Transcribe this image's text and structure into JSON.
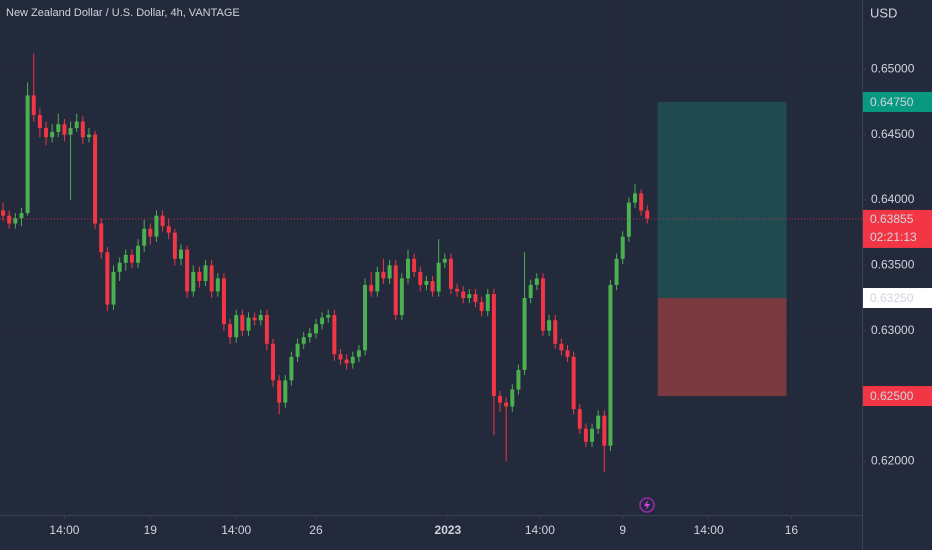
{
  "chart_data": {
    "type": "candlestick",
    "title": "New Zealand Dollar / U.S. Dollar, 4h, VANTAGE",
    "currency": "USD",
    "up_color": "#4caf50",
    "down_color": "#f23645",
    "grid": true,
    "xlim": [
      -0.5,
      140
    ],
    "ylim": [
      0.6159,
      0.6553
    ],
    "yticks": [
      {
        "value": 0.65,
        "label": "0.65000"
      },
      {
        "value": 0.645,
        "label": "0.64500"
      },
      {
        "value": 0.64,
        "label": "0.64000"
      },
      {
        "value": 0.635,
        "label": "0.63500"
      },
      {
        "value": 0.63,
        "label": "0.63000"
      },
      {
        "value": 0.625,
        "label": "0.62500"
      },
      {
        "value": 0.62,
        "label": "0.62000"
      }
    ],
    "xticks": [
      {
        "value": 10,
        "label": "14:00"
      },
      {
        "value": 24,
        "label": "19"
      },
      {
        "value": 38,
        "label": "14:00"
      },
      {
        "value": 51,
        "label": "26"
      },
      {
        "value": 72.5,
        "label": "2023"
      },
      {
        "value": 87.5,
        "label": "14:00"
      },
      {
        "value": 101,
        "label": "9"
      },
      {
        "value": 115,
        "label": "14:00"
      },
      {
        "value": 128.5,
        "label": "16"
      }
    ],
    "candles": [
      [
        0.6392,
        0.6398,
        0.6384,
        0.6388
      ],
      [
        0.6388,
        0.6392,
        0.6378,
        0.6382
      ],
      [
        0.6382,
        0.639,
        0.6378,
        0.6386
      ],
      [
        0.6386,
        0.6394,
        0.638,
        0.639
      ],
      [
        0.639,
        0.649,
        0.6388,
        0.648
      ],
      [
        0.648,
        0.6512,
        0.646,
        0.6465
      ],
      [
        0.6465,
        0.647,
        0.6448,
        0.6455
      ],
      [
        0.6455,
        0.646,
        0.6442,
        0.6448
      ],
      [
        0.6448,
        0.6458,
        0.6444,
        0.6452
      ],
      [
        0.6452,
        0.6466,
        0.6448,
        0.6458
      ],
      [
        0.6458,
        0.6462,
        0.6445,
        0.645
      ],
      [
        0.645,
        0.646,
        0.64,
        0.6455
      ],
      [
        0.6455,
        0.6466,
        0.6452,
        0.646
      ],
      [
        0.646,
        0.6464,
        0.6443,
        0.6448
      ],
      [
        0.6448,
        0.6455,
        0.6444,
        0.645
      ],
      [
        0.645,
        0.6453,
        0.6378,
        0.6382
      ],
      [
        0.6382,
        0.6386,
        0.6355,
        0.636
      ],
      [
        0.636,
        0.6364,
        0.6315,
        0.632
      ],
      [
        0.632,
        0.635,
        0.6316,
        0.6345
      ],
      [
        0.6345,
        0.6356,
        0.6338,
        0.6352
      ],
      [
        0.6352,
        0.6362,
        0.6346,
        0.6358
      ],
      [
        0.6358,
        0.6362,
        0.6348,
        0.6352
      ],
      [
        0.6352,
        0.637,
        0.6348,
        0.6365
      ],
      [
        0.6365,
        0.6385,
        0.636,
        0.6378
      ],
      [
        0.6378,
        0.6382,
        0.6366,
        0.6372
      ],
      [
        0.6372,
        0.6392,
        0.6368,
        0.6388
      ],
      [
        0.6388,
        0.6392,
        0.6376,
        0.638
      ],
      [
        0.638,
        0.6386,
        0.637,
        0.6375
      ],
      [
        0.6375,
        0.6378,
        0.635,
        0.6355
      ],
      [
        0.6355,
        0.6366,
        0.635,
        0.6362
      ],
      [
        0.6362,
        0.6365,
        0.6325,
        0.633
      ],
      [
        0.633,
        0.635,
        0.6326,
        0.6345
      ],
      [
        0.6345,
        0.6349,
        0.6333,
        0.6338
      ],
      [
        0.6338,
        0.6354,
        0.6334,
        0.635
      ],
      [
        0.635,
        0.6354,
        0.6325,
        0.633
      ],
      [
        0.633,
        0.6344,
        0.6326,
        0.634
      ],
      [
        0.634,
        0.6344,
        0.63,
        0.6305
      ],
      [
        0.6305,
        0.6309,
        0.629,
        0.6295
      ],
      [
        0.6295,
        0.6316,
        0.6291,
        0.6312
      ],
      [
        0.6312,
        0.6316,
        0.6296,
        0.63
      ],
      [
        0.63,
        0.6314,
        0.6296,
        0.631
      ],
      [
        0.631,
        0.6314,
        0.6304,
        0.6308
      ],
      [
        0.6308,
        0.6316,
        0.6304,
        0.6312
      ],
      [
        0.6312,
        0.6316,
        0.6285,
        0.629
      ],
      [
        0.629,
        0.6294,
        0.6257,
        0.6262
      ],
      [
        0.6262,
        0.6266,
        0.6236,
        0.6245
      ],
      [
        0.6245,
        0.6266,
        0.6241,
        0.6262
      ],
      [
        0.6262,
        0.6284,
        0.6258,
        0.628
      ],
      [
        0.628,
        0.6294,
        0.6276,
        0.629
      ],
      [
        0.629,
        0.6299,
        0.6286,
        0.6295
      ],
      [
        0.6295,
        0.6302,
        0.6291,
        0.6298
      ],
      [
        0.6298,
        0.6309,
        0.6294,
        0.6305
      ],
      [
        0.6305,
        0.6314,
        0.6301,
        0.631
      ],
      [
        0.631,
        0.6316,
        0.6306,
        0.6312
      ],
      [
        0.6312,
        0.6316,
        0.6277,
        0.6282
      ],
      [
        0.6282,
        0.6286,
        0.6274,
        0.6278
      ],
      [
        0.6278,
        0.6282,
        0.627,
        0.6275
      ],
      [
        0.6275,
        0.6284,
        0.6271,
        0.628
      ],
      [
        0.628,
        0.6289,
        0.6276,
        0.6285
      ],
      [
        0.6285,
        0.634,
        0.6281,
        0.6335
      ],
      [
        0.6335,
        0.6345,
        0.6326,
        0.633
      ],
      [
        0.633,
        0.6349,
        0.6326,
        0.6345
      ],
      [
        0.6345,
        0.6355,
        0.6336,
        0.634
      ],
      [
        0.634,
        0.6354,
        0.6336,
        0.635
      ],
      [
        0.635,
        0.6354,
        0.6308,
        0.6312
      ],
      [
        0.6312,
        0.6344,
        0.6308,
        0.634
      ],
      [
        0.634,
        0.6362,
        0.6336,
        0.6355
      ],
      [
        0.6355,
        0.6359,
        0.6341,
        0.6345
      ],
      [
        0.6345,
        0.6349,
        0.633,
        0.6335
      ],
      [
        0.6335,
        0.6342,
        0.6331,
        0.6338
      ],
      [
        0.6338,
        0.6342,
        0.6326,
        0.633
      ],
      [
        0.633,
        0.637,
        0.6326,
        0.6352
      ],
      [
        0.6352,
        0.6359,
        0.6348,
        0.6355
      ],
      [
        0.6355,
        0.6359,
        0.6328,
        0.6332
      ],
      [
        0.6332,
        0.6336,
        0.6326,
        0.633
      ],
      [
        0.633,
        0.6334,
        0.6321,
        0.6325
      ],
      [
        0.6325,
        0.6332,
        0.6321,
        0.6328
      ],
      [
        0.6328,
        0.6332,
        0.6318,
        0.6322
      ],
      [
        0.6322,
        0.6326,
        0.6311,
        0.6315
      ],
      [
        0.6315,
        0.6332,
        0.6311,
        0.6328
      ],
      [
        0.6328,
        0.6332,
        0.622,
        0.625
      ],
      [
        0.625,
        0.6254,
        0.6238,
        0.6245
      ],
      [
        0.6245,
        0.6249,
        0.62,
        0.6242
      ],
      [
        0.6242,
        0.6259,
        0.6238,
        0.6255
      ],
      [
        0.6255,
        0.6274,
        0.6251,
        0.627
      ],
      [
        0.627,
        0.636,
        0.6266,
        0.6325
      ],
      [
        0.6325,
        0.6339,
        0.6321,
        0.6335
      ],
      [
        0.6335,
        0.6344,
        0.6331,
        0.634
      ],
      [
        0.634,
        0.6344,
        0.6296,
        0.63
      ],
      [
        0.63,
        0.6312,
        0.6296,
        0.6308
      ],
      [
        0.6308,
        0.6312,
        0.6286,
        0.629
      ],
      [
        0.629,
        0.6294,
        0.6281,
        0.6285
      ],
      [
        0.6285,
        0.6289,
        0.6276,
        0.628
      ],
      [
        0.628,
        0.6284,
        0.6236,
        0.624
      ],
      [
        0.624,
        0.6244,
        0.6221,
        0.6225
      ],
      [
        0.6225,
        0.6229,
        0.6211,
        0.6215
      ],
      [
        0.6215,
        0.6229,
        0.6211,
        0.6225
      ],
      [
        0.6225,
        0.6239,
        0.6221,
        0.6235
      ],
      [
        0.6235,
        0.6239,
        0.6192,
        0.6212
      ],
      [
        0.6212,
        0.6339,
        0.6208,
        0.6335
      ],
      [
        0.6335,
        0.6359,
        0.6331,
        0.6355
      ],
      [
        0.6355,
        0.6376,
        0.6351,
        0.6372
      ],
      [
        0.6372,
        0.6402,
        0.6368,
        0.6398
      ],
      [
        0.6398,
        0.6412,
        0.6394,
        0.6405
      ],
      [
        0.6405,
        0.6408,
        0.6388,
        0.6392
      ],
      [
        0.6392,
        0.6396,
        0.6382,
        0.6386
      ]
    ],
    "position": {
      "start": 106.7,
      "end": 127.7,
      "target": {
        "value": 0.6475,
        "label": "0.64750",
        "color": "#089981"
      },
      "entry": {
        "value": 0.6325,
        "label": "0.63250"
      },
      "stop": {
        "value": 0.625,
        "label": "0.62500",
        "color": "#f23645"
      },
      "profit_color": "#1f4a4f",
      "loss_color": "#7a3b40"
    },
    "last_price": {
      "value": 0.63855,
      "label": "0.63855",
      "countdown": "02:21:13",
      "color": "#f23645"
    }
  }
}
